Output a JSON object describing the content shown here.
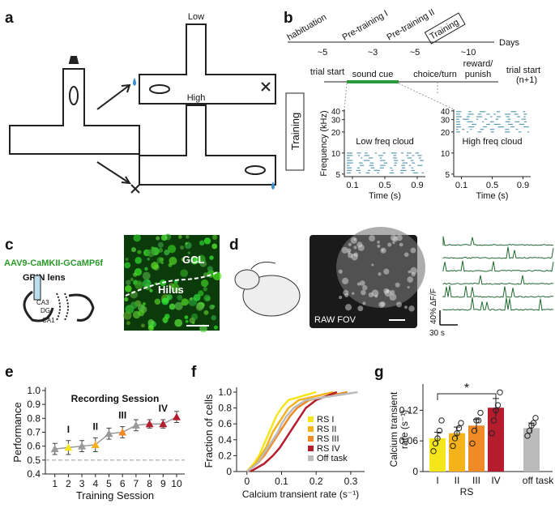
{
  "panel_labels": [
    "a",
    "b",
    "c",
    "d",
    "e",
    "f",
    "g"
  ],
  "panel_a": {
    "low": "Low",
    "high": "High"
  },
  "panel_b": {
    "stages": [
      "habituation",
      "Pre-training I",
      "Pre-training II",
      "Training"
    ],
    "durations": [
      "~5",
      "~3",
      "~5",
      "~10"
    ],
    "days": "Days",
    "trial_events": [
      "trial start",
      "sound cue",
      "choice/turn",
      "reward/",
      "punish",
      "trial start",
      "(n+1)"
    ],
    "side_label": "Training",
    "y_label": "Frequency (kHz)",
    "x_label": "Time (s)",
    "yticks": [
      5,
      10,
      20,
      30,
      40
    ],
    "ylim": [
      4.6,
      42
    ],
    "log_y": true,
    "xticks": [
      0.1,
      0.5,
      0.9
    ],
    "xlim": [
      0,
      1
    ],
    "clouds": [
      "Low freq cloud",
      "High freq cloud"
    ],
    "tone_color": "#5b9bb5"
  },
  "panel_c": {
    "construct": "AAV9-CaMKII-GCaMP6f",
    "lens": "GRIN lens",
    "regions": [
      "CA3",
      "DG",
      "CA1"
    ],
    "layers": [
      "GCL",
      "Hilus"
    ]
  },
  "panel_d": {
    "fov": "RAW FOV",
    "scale_y": "40% ΔF/F",
    "scale_x": "30 s",
    "trace_color": "#1f6b2e"
  },
  "chart_data": [
    {
      "type": "line",
      "title": "Recording Session",
      "x_label": "Training Session",
      "y_label": "Performance",
      "x": [
        1,
        2,
        3,
        4,
        5,
        6,
        7,
        8,
        9,
        10
      ],
      "values": [
        0.58,
        0.59,
        0.6,
        0.61,
        0.69,
        0.7,
        0.75,
        0.76,
        0.76,
        0.81
      ],
      "errors": [
        0.04,
        0.05,
        0.04,
        0.05,
        0.04,
        0.04,
        0.04,
        0.03,
        0.03,
        0.04
      ],
      "colors": [
        "#999999",
        "#f5e61a",
        "#999999",
        "#f5b21a",
        "#999999",
        "#f08a24",
        "#999999",
        "#b51c2c",
        "#b51c2c",
        "#b51c2c"
      ],
      "xlim": [
        0.3,
        10.6
      ],
      "ylim": [
        0.4,
        1.0
      ],
      "yticks": [
        0.4,
        0.5,
        0.6,
        0.7,
        0.8,
        0.9,
        {
          "value": 1.0,
          "label": "1.0"
        }
      ],
      "ref_line": 0.5,
      "annotations": [
        "I",
        "II",
        "III",
        "IV"
      ]
    },
    {
      "type": "cdf",
      "x_label": "Calcium transient rate (s⁻¹)",
      "y_label": "Fraction of cells",
      "y": [
        0,
        0.1,
        0.2,
        0.3,
        0.4,
        0.5,
        0.6,
        0.7,
        0.8,
        0.9,
        1.0
      ],
      "series": [
        {
          "name": "RS I",
          "color": "#f5e61a",
          "values": [
            0.0,
            0.02,
            0.035,
            0.045,
            0.055,
            0.065,
            0.075,
            0.085,
            0.1,
            0.12,
            0.2
          ]
        },
        {
          "name": "RS II",
          "color": "#f5b21a",
          "values": [
            0.0,
            0.025,
            0.04,
            0.055,
            0.065,
            0.075,
            0.09,
            0.105,
            0.12,
            0.15,
            0.25
          ]
        },
        {
          "name": "RS III",
          "color": "#f08a24",
          "values": [
            0.0,
            0.03,
            0.05,
            0.065,
            0.08,
            0.095,
            0.11,
            0.125,
            0.145,
            0.18,
            0.29
          ]
        },
        {
          "name": "RS IV",
          "color": "#b51c2c",
          "values": [
            0.01,
            0.05,
            0.075,
            0.095,
            0.11,
            0.125,
            0.14,
            0.155,
            0.17,
            0.2,
            0.26
          ]
        },
        {
          "name": "Off task",
          "color": "#bbbbbb",
          "values": [
            0.0,
            0.03,
            0.045,
            0.06,
            0.075,
            0.09,
            0.1,
            0.115,
            0.135,
            0.17,
            0.32
          ]
        }
      ],
      "xlim": [
        -0.03,
        0.34
      ],
      "ylim": [
        0,
        1.02
      ],
      "xticks": [
        0,
        0.1,
        0.2,
        0.3
      ],
      "yticks": [
        0,
        0.2,
        0.4,
        0.6,
        0.8,
        {
          "value": 1.0,
          "label": "1.0"
        }
      ]
    },
    {
      "type": "bar",
      "y_label": [
        "Calcium transient",
        "rate (s⁻¹)"
      ],
      "x_label": "RS",
      "categories": [
        "I",
        "II",
        "III",
        "IV",
        "off task"
      ],
      "values": [
        0.065,
        0.075,
        0.09,
        0.125,
        0.085
      ],
      "errors": [
        0.012,
        0.012,
        0.012,
        0.018,
        0.01
      ],
      "points": [
        [
          0.04,
          0.055,
          0.065,
          0.08,
          0.1
        ],
        [
          0.05,
          0.065,
          0.075,
          0.085,
          0.095
        ],
        [
          0.055,
          0.08,
          0.1,
          0.1,
          0.115
        ],
        [
          0.075,
          0.1,
          0.12,
          0.13,
          0.155
        ],
        [
          0.07,
          0.08,
          0.09,
          0.095,
          0.105
        ]
      ],
      "colors": [
        "#f5e61a",
        "#f5b21a",
        "#f08a24",
        "#b51c2c",
        "#bbbbbb"
      ],
      "ylim": [
        0,
        0.165
      ],
      "yticks": [
        0,
        0.06,
        0.12
      ],
      "significance": "*"
    }
  ]
}
